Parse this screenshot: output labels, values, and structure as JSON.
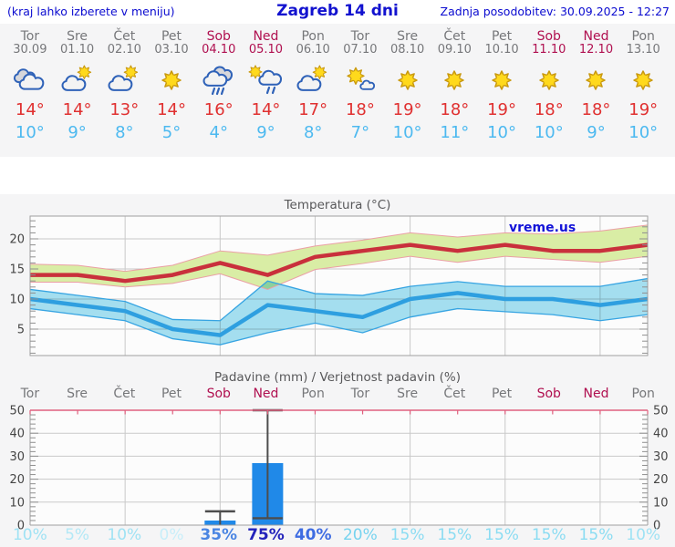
{
  "header": {
    "location_hint": "(kraj lahko izberete v meniju)",
    "title": "Zagreb 14 dni",
    "last_update": "Zadnja posodobitev: 30.09.2025 - 12:27"
  },
  "watermark": "vreme.us",
  "days": [
    {
      "name": "Tor",
      "date": "30.09",
      "weekend": false,
      "icon": "cloudy",
      "tmax": "14°",
      "tmin": "10°",
      "prob": "10%",
      "prob_color": "#9fe2f4"
    },
    {
      "name": "Sre",
      "date": "01.10",
      "weekend": false,
      "icon": "sun-cloud",
      "tmax": "14°",
      "tmin": "9°",
      "prob": "5%",
      "prob_color": "#b3e8f6"
    },
    {
      "name": "Čet",
      "date": "02.10",
      "weekend": false,
      "icon": "sun-cloud",
      "tmax": "13°",
      "tmin": "8°",
      "prob": "10%",
      "prob_color": "#9fe2f4"
    },
    {
      "name": "Pet",
      "date": "03.10",
      "weekend": false,
      "icon": "sun",
      "tmax": "14°",
      "tmin": "5°",
      "prob": "0%",
      "prob_color": "#c8eef9"
    },
    {
      "name": "Sob",
      "date": "04.10",
      "weekend": true,
      "icon": "rain",
      "tmax": "16°",
      "tmin": "4°",
      "prob": "35%",
      "prob_color": "#4a85e2"
    },
    {
      "name": "Ned",
      "date": "05.10",
      "weekend": true,
      "icon": "sun-rain",
      "tmax": "14°",
      "tmin": "9°",
      "prob": "75%",
      "prob_color": "#2222bb"
    },
    {
      "name": "Pon",
      "date": "06.10",
      "weekend": false,
      "icon": "sun-cloud",
      "tmax": "17°",
      "tmin": "8°",
      "prob": "40%",
      "prob_color": "#3e6ce2"
    },
    {
      "name": "Tor",
      "date": "07.10",
      "weekend": false,
      "icon": "sun-small-cloud",
      "tmax": "18°",
      "tmin": "7°",
      "prob": "20%",
      "prob_color": "#76d3ef"
    },
    {
      "name": "Sre",
      "date": "08.10",
      "weekend": false,
      "icon": "sun",
      "tmax": "19°",
      "tmin": "10°",
      "prob": "15%",
      "prob_color": "#8bdcf2"
    },
    {
      "name": "Čet",
      "date": "09.10",
      "weekend": false,
      "icon": "sun",
      "tmax": "18°",
      "tmin": "11°",
      "prob": "15%",
      "prob_color": "#8bdcf2"
    },
    {
      "name": "Pet",
      "date": "10.10",
      "weekend": false,
      "icon": "sun",
      "tmax": "19°",
      "tmin": "10°",
      "prob": "15%",
      "prob_color": "#8bdcf2"
    },
    {
      "name": "Sob",
      "date": "11.10",
      "weekend": true,
      "icon": "sun",
      "tmax": "18°",
      "tmin": "10°",
      "prob": "15%",
      "prob_color": "#8bdcf2"
    },
    {
      "name": "Ned",
      "date": "12.10",
      "weekend": true,
      "icon": "sun",
      "tmax": "18°",
      "tmin": "9°",
      "prob": "15%",
      "prob_color": "#8bdcf2"
    },
    {
      "name": "Pon",
      "date": "13.10",
      "weekend": false,
      "icon": "sun",
      "tmax": "19°",
      "tmin": "10°",
      "prob": "10%",
      "prob_color": "#9fe2f4"
    }
  ],
  "chart_data": [
    {
      "type": "line",
      "title": "Temperatura (°C)",
      "categories": [
        "Tor",
        "Sre",
        "Čet",
        "Pet",
        "Sob",
        "Ned",
        "Pon",
        "Tor",
        "Sre",
        "Čet",
        "Pet",
        "Sob",
        "Ned",
        "Pon"
      ],
      "yticks": [
        5,
        10,
        15,
        20
      ],
      "ylim": [
        0.5,
        23.5
      ],
      "grid": true,
      "legend": "none",
      "series": [
        {
          "name": "max temperature",
          "color": "#c9303c",
          "values": [
            14,
            14,
            13,
            14,
            16,
            14,
            17,
            18,
            19,
            18,
            19,
            18,
            18,
            19
          ],
          "band_upper": [
            15.8,
            15.6,
            14.6,
            15.6,
            18,
            17.3,
            18.8,
            19.8,
            21,
            20.3,
            21,
            20.8,
            21.3,
            22.3
          ],
          "band_lower": [
            12.8,
            12.8,
            12,
            12.6,
            14.2,
            11.6,
            14.9,
            15.9,
            17.1,
            16.1,
            17.1,
            16.6,
            16.1,
            17.1
          ],
          "band_color": "#d9eda5",
          "band_edge": "#eb9fa5"
        },
        {
          "name": "min temperature",
          "color": "#2e9fe0",
          "values": [
            10,
            9,
            8,
            5,
            4,
            9,
            8,
            7,
            10,
            11,
            10,
            10,
            9,
            10
          ],
          "band_upper": [
            11.6,
            10.6,
            9.6,
            6.6,
            6.4,
            13,
            10.9,
            10.6,
            12.1,
            12.9,
            12.1,
            12.1,
            12.1,
            13.4
          ],
          "band_lower": [
            8.4,
            7.4,
            6.4,
            3.4,
            2.4,
            4.4,
            6,
            4.4,
            7,
            8.4,
            7.9,
            7.4,
            6.4,
            7.4
          ],
          "band_color": "#a6e1f2",
          "band_edge": "#36a4e2"
        }
      ]
    },
    {
      "type": "bar",
      "title": "Padavine (mm) / Verjetnost padavin (%)",
      "categories": [
        "Tor",
        "Sre",
        "Čet",
        "Pet",
        "Sob",
        "Ned",
        "Pon",
        "Tor",
        "Sre",
        "Čet",
        "Pet",
        "Sob",
        "Ned",
        "Pon"
      ],
      "values": [
        0,
        0,
        0,
        0,
        2,
        27,
        0,
        0,
        0,
        0,
        0,
        0,
        0,
        0
      ],
      "whiskers": {
        "4": [
          0,
          6
        ],
        "5": [
          3,
          50
        ]
      },
      "probabilities": [
        "10%",
        "5%",
        "10%",
        "0%",
        "35%",
        "75%",
        "40%",
        "20%",
        "15%",
        "15%",
        "15%",
        "15%",
        "15%",
        "10%"
      ],
      "yticks": [
        0,
        10,
        20,
        30,
        40,
        50
      ],
      "ylim": [
        0,
        50
      ],
      "grid": true,
      "bar_color": "#2089e8",
      "whisker_color": "#4d4d4d"
    }
  ],
  "theme": {
    "grid": "#c9c9c9",
    "border": "#a0a0a0",
    "tick": "#8f8f8f",
    "axis_text": "#454545",
    "plot_bg": "#fcfcfc",
    "precip_top_line": "#e0607e"
  }
}
